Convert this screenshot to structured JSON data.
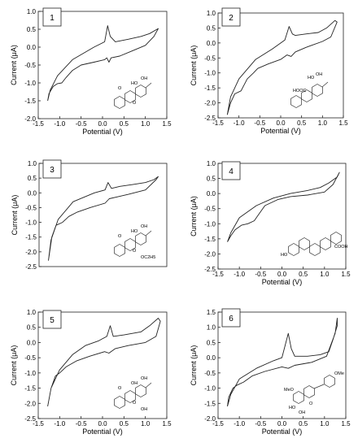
{
  "chart_data": [
    {
      "type": "line",
      "panel_label": "1",
      "xlabel": "Potential (V)",
      "ylabel": "Current (μA)",
      "xlim": [
        -1.5,
        1.5
      ],
      "ylim": [
        -2.0,
        1.0
      ],
      "x_ticks": [
        "-1.5",
        "-1.0",
        "-0.5",
        "0.0",
        "0.5",
        "1.0",
        "1.5"
      ],
      "y_ticks": [
        "1.0",
        "0.5",
        "0.0",
        "-0.5",
        "-1.0",
        "-1.5",
        "-2.0"
      ],
      "series": [
        {
          "x": [
            -1.28,
            -1.22,
            -1.05,
            -0.7,
            -0.2,
            0.05,
            0.12,
            0.18,
            0.3,
            0.6,
            0.9,
            1.1,
            1.3,
            1.2,
            1.0,
            0.7,
            0.4,
            0.2,
            0.15,
            0.1,
            0.05,
            -0.2,
            -0.5,
            -0.7,
            -0.85,
            -0.95,
            -1.05,
            -1.15,
            -1.25,
            -1.28
          ],
          "y": [
            -1.5,
            -1.2,
            -0.8,
            -0.35,
            0.0,
            0.15,
            0.6,
            0.3,
            0.15,
            0.22,
            0.3,
            0.38,
            0.52,
            0.3,
            0.05,
            -0.1,
            -0.25,
            -0.3,
            -0.42,
            -0.3,
            -0.35,
            -0.42,
            -0.5,
            -0.65,
            -0.85,
            -1.0,
            -1.02,
            -1.1,
            -1.3,
            -1.5
          ]
        }
      ],
      "structure": "hydroxy-abietane lactone"
    },
    {
      "type": "line",
      "panel_label": "2",
      "xlabel": "Potential (V)",
      "ylabel": "Current (μA)",
      "xlim": [
        -1.5,
        1.5
      ],
      "ylim": [
        -2.5,
        1.0
      ],
      "x_ticks": [
        "-1.5",
        "-1.0",
        "-0.5",
        "0.0",
        "0.5",
        "1.0",
        "1.5"
      ],
      "y_ticks": [
        "1.0",
        "0.5",
        "0.0",
        "-0.5",
        "-1.0",
        "-1.5",
        "-2.0",
        "-2.5"
      ],
      "series": [
        {
          "x": [
            -1.28,
            -1.2,
            -1.0,
            -0.6,
            -0.2,
            0.1,
            0.2,
            0.28,
            0.35,
            0.6,
            0.9,
            1.1,
            1.3,
            1.35,
            1.2,
            1.0,
            0.6,
            0.35,
            0.25,
            0.15,
            0.0,
            -0.3,
            -0.55,
            -0.65,
            -0.8,
            -0.95,
            -1.1,
            -1.2,
            -1.28
          ],
          "y": [
            -2.4,
            -1.8,
            -1.2,
            -0.55,
            -0.2,
            0.1,
            0.55,
            0.3,
            0.25,
            0.3,
            0.35,
            0.5,
            0.75,
            0.7,
            0.2,
            0.05,
            -0.15,
            -0.3,
            -0.45,
            -0.4,
            -0.55,
            -0.7,
            -0.85,
            -1.0,
            -1.2,
            -1.6,
            -1.7,
            -2.0,
            -2.4
          ]
        }
      ],
      "structure": "carboxy-abietane"
    },
    {
      "type": "line",
      "panel_label": "3",
      "xlabel": "",
      "ylabel": "Current (μA)",
      "xlim": [
        -1.5,
        1.5
      ],
      "ylim": [
        -2.5,
        1.0
      ],
      "x_ticks": [],
      "y_ticks": [
        "1.0",
        "0.5",
        "0.0",
        "-0.5",
        "-1.0",
        "-1.5",
        "-2.0",
        "-2.5"
      ],
      "series": [
        {
          "x": [
            -1.28,
            -1.22,
            -1.05,
            -0.7,
            -0.2,
            0.05,
            0.12,
            0.2,
            0.4,
            0.7,
            1.0,
            1.2,
            1.3,
            1.25,
            1.0,
            0.6,
            0.3,
            0.15,
            0.05,
            -0.3,
            -0.6,
            -0.8,
            -0.95,
            -1.1,
            -1.2,
            -1.28
          ],
          "y": [
            -2.3,
            -1.6,
            -0.9,
            -0.3,
            0.0,
            0.1,
            0.35,
            0.15,
            0.22,
            0.28,
            0.35,
            0.45,
            0.55,
            0.45,
            0.1,
            -0.05,
            -0.15,
            -0.2,
            -0.35,
            -0.5,
            -0.65,
            -0.8,
            -1.0,
            -1.1,
            -1.5,
            -2.3
          ]
        }
      ],
      "structure": "ethoxy-abietane lactone"
    },
    {
      "type": "line",
      "panel_label": "4",
      "xlabel": "Potential (V)",
      "ylabel": "Current (μA)",
      "xlim": [
        -1.5,
        1.5
      ],
      "ylim": [
        -2.5,
        1.0
      ],
      "x_ticks": [
        "-1.5",
        "-1.0",
        "-0.5",
        "0.0",
        "0.5",
        "1.0",
        "1.5"
      ],
      "y_ticks": [
        "1.0",
        "0.5",
        "0.0",
        "-0.5",
        "-1.0",
        "-1.5",
        "-2.0",
        "-2.5"
      ],
      "series": [
        {
          "x": [
            -1.28,
            -1.2,
            -1.0,
            -0.6,
            -0.2,
            0.2,
            0.6,
            0.9,
            1.1,
            1.3,
            1.35,
            1.2,
            1.0,
            0.6,
            0.2,
            -0.1,
            -0.4,
            -0.55,
            -0.65,
            -0.8,
            -0.95,
            -1.1,
            -1.2,
            -1.28
          ],
          "y": [
            -1.6,
            -1.3,
            -0.8,
            -0.4,
            -0.15,
            0.0,
            0.1,
            0.2,
            0.35,
            0.55,
            0.7,
            0.3,
            0.05,
            -0.05,
            -0.1,
            -0.2,
            -0.4,
            -0.7,
            -0.9,
            -1.0,
            -1.05,
            -1.2,
            -1.4,
            -1.6
          ]
        }
      ],
      "structure": "ursolic acid"
    },
    {
      "type": "line",
      "panel_label": "5",
      "xlabel": "Potential (V)",
      "ylabel": "Current (μA)",
      "xlim": [
        -1.5,
        1.5
      ],
      "ylim": [
        -2.5,
        1.0
      ],
      "x_ticks": [
        "-1.5",
        "-1.0",
        "-0.5",
        "0.0",
        "0.5",
        "1.0",
        "1.5"
      ],
      "y_ticks": [
        "1.0",
        "0.5",
        "0.0",
        "-0.5",
        "-1.0",
        "-1.5",
        "-2.0",
        "-2.5"
      ],
      "series": [
        {
          "x": [
            -1.28,
            -1.2,
            -1.0,
            -0.7,
            -0.4,
            -0.1,
            0.1,
            0.18,
            0.25,
            0.5,
            0.9,
            1.1,
            1.3,
            1.35,
            1.25,
            1.0,
            0.6,
            0.3,
            0.15,
            0.05,
            -0.3,
            -0.6,
            -0.85,
            -1.0,
            -1.1,
            -1.2,
            -1.28
          ],
          "y": [
            -2.1,
            -1.5,
            -0.9,
            -0.4,
            -0.1,
            0.05,
            0.2,
            0.55,
            0.2,
            0.25,
            0.35,
            0.55,
            0.8,
            0.7,
            0.2,
            0.0,
            -0.1,
            -0.2,
            -0.35,
            -0.3,
            -0.45,
            -0.6,
            -0.8,
            -1.0,
            -1.1,
            -1.5,
            -2.1
          ]
        }
      ],
      "structure": "hydroxy-abietane lactone"
    },
    {
      "type": "line",
      "panel_label": "6",
      "xlabel": "Potential (V)",
      "ylabel": "Current (μA)",
      "xlim": [
        -1.5,
        1.5
      ],
      "ylim": [
        -2.0,
        1.5
      ],
      "x_ticks": [
        "-1.5",
        "-1.0",
        "-0.5",
        "0.0",
        "0.5",
        "1.0",
        "1.5"
      ],
      "y_ticks": [
        "1.5",
        "1.0",
        "0.5",
        "0.0",
        "-0.5",
        "-1.0",
        "-1.5",
        "-2.0"
      ],
      "series": [
        {
          "x": [
            -1.28,
            -1.2,
            -1.0,
            -0.6,
            -0.2,
            0.0,
            0.15,
            0.22,
            0.3,
            0.6,
            0.9,
            1.1,
            1.2,
            1.3,
            1.3,
            1.25,
            1.05,
            0.7,
            0.3,
            0.15,
            0.0,
            -0.4,
            -0.7,
            -0.9,
            -1.05,
            -1.15,
            -1.25,
            -1.28
          ],
          "y": [
            -1.6,
            -1.2,
            -0.7,
            -0.35,
            -0.1,
            0.0,
            0.8,
            0.3,
            0.05,
            0.05,
            0.1,
            0.2,
            0.6,
            1.05,
            1.3,
            0.8,
            0.05,
            -0.15,
            -0.25,
            -0.35,
            -0.3,
            -0.45,
            -0.6,
            -0.8,
            -0.9,
            -1.0,
            -1.3,
            -1.6
          ]
        }
      ],
      "structure": "dimethoxy flavone"
    }
  ],
  "structures": {
    "s1": {
      "o1": "O",
      "oh1": "HO",
      "oh2": "OH",
      "o2": "O"
    },
    "s2": {
      "oh1": "HO",
      "oh2": "OH",
      "acid": "HOOC"
    },
    "s3": {
      "o1": "O",
      "oh1": "HO",
      "oh2": "OH",
      "o2": "O",
      "ethoxy": "OC2H5"
    },
    "s4": {
      "ho": "HO",
      "acid": "COOH"
    },
    "s5": {
      "o1": "O",
      "oh1": "OH",
      "oh2": "OH",
      "o2": "O",
      "oh3": "OH"
    },
    "s6": {
      "meo1": "MeO",
      "ome": "OMe",
      "ho": "HO",
      "oh": "OH",
      "o1": "O"
    }
  }
}
